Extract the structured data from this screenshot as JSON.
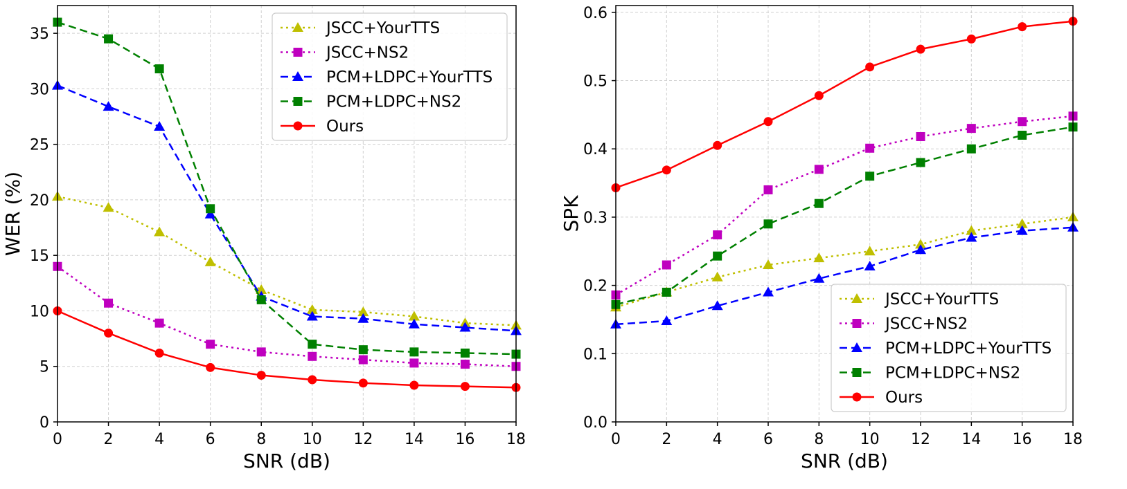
{
  "chart_data": [
    {
      "type": "line",
      "xlabel": "SNR (dB)",
      "ylabel": "WER (%)",
      "xlim": [
        0,
        18
      ],
      "ylim": [
        0,
        37.5
      ],
      "xticks": [
        "0",
        "2",
        "4",
        "6",
        "8",
        "10",
        "12",
        "14",
        "16",
        "18"
      ],
      "yticks": [
        "0",
        "5",
        "10",
        "15",
        "20",
        "25",
        "30",
        "35"
      ],
      "grid": true,
      "legend_position": "top-right",
      "x": [
        0,
        2,
        4,
        6,
        8,
        10,
        12,
        14,
        16,
        18
      ],
      "series": [
        {
          "name": "JSCC+YourTTS",
          "color": "#bfbf00",
          "linestyle": "dotted",
          "marker": "triangle",
          "values": [
            20.3,
            19.3,
            17.1,
            14.4,
            11.9,
            10.1,
            9.9,
            9.5,
            8.9,
            8.7
          ]
        },
        {
          "name": "JSCC+NS2",
          "color": "#bf00bf",
          "linestyle": "dotted",
          "marker": "square",
          "values": [
            14.0,
            10.7,
            8.9,
            7.0,
            6.3,
            5.9,
            5.6,
            5.3,
            5.2,
            5.0
          ]
        },
        {
          "name": "PCM+LDPC+YourTTS",
          "color": "#0000ff",
          "linestyle": "dashed",
          "marker": "triangle",
          "values": [
            30.3,
            28.4,
            26.6,
            18.7,
            11.3,
            9.5,
            9.3,
            8.8,
            8.5,
            8.2
          ]
        },
        {
          "name": "PCM+LDPC+NS2",
          "color": "#008000",
          "linestyle": "dashed",
          "marker": "square",
          "values": [
            36.0,
            34.5,
            31.8,
            19.2,
            11.0,
            7.0,
            6.5,
            6.3,
            6.2,
            6.1
          ]
        },
        {
          "name": "Ours",
          "color": "#ff0000",
          "linestyle": "solid",
          "marker": "circle",
          "values": [
            10.0,
            8.0,
            6.2,
            4.9,
            4.2,
            3.8,
            3.5,
            3.3,
            3.2,
            3.1
          ]
        }
      ]
    },
    {
      "type": "line",
      "xlabel": "SNR (dB)",
      "ylabel": "SPK",
      "xlim": [
        0,
        18
      ],
      "ylim": [
        0,
        0.61
      ],
      "xticks": [
        "0",
        "2",
        "4",
        "6",
        "8",
        "10",
        "12",
        "14",
        "16",
        "18"
      ],
      "yticks": [
        "0.0",
        "0.1",
        "0.2",
        "0.3",
        "0.4",
        "0.5",
        "0.6"
      ],
      "grid": true,
      "legend_position": "bottom-right",
      "x": [
        0,
        2,
        4,
        6,
        8,
        10,
        12,
        14,
        16,
        18
      ],
      "series": [
        {
          "name": "JSCC+YourTTS",
          "color": "#bfbf00",
          "linestyle": "dotted",
          "marker": "triangle",
          "values": [
            0.168,
            0.19,
            0.212,
            0.23,
            0.24,
            0.25,
            0.26,
            0.28,
            0.29,
            0.3
          ]
        },
        {
          "name": "JSCC+NS2",
          "color": "#bf00bf",
          "linestyle": "dotted",
          "marker": "square",
          "values": [
            0.186,
            0.23,
            0.274,
            0.34,
            0.37,
            0.401,
            0.418,
            0.43,
            0.44,
            0.448
          ]
        },
        {
          "name": "PCM+LDPC+YourTTS",
          "color": "#0000ff",
          "linestyle": "dashed",
          "marker": "triangle",
          "values": [
            0.143,
            0.148,
            0.17,
            0.19,
            0.21,
            0.228,
            0.252,
            0.27,
            0.28,
            0.285
          ]
        },
        {
          "name": "PCM+LDPC+NS2",
          "color": "#008000",
          "linestyle": "dashed",
          "marker": "square",
          "values": [
            0.172,
            0.19,
            0.243,
            0.29,
            0.32,
            0.36,
            0.38,
            0.4,
            0.42,
            0.432
          ]
        },
        {
          "name": "Ours",
          "color": "#ff0000",
          "linestyle": "solid",
          "marker": "circle",
          "values": [
            0.343,
            0.369,
            0.405,
            0.44,
            0.478,
            0.52,
            0.546,
            0.561,
            0.579,
            0.587
          ]
        }
      ]
    }
  ]
}
